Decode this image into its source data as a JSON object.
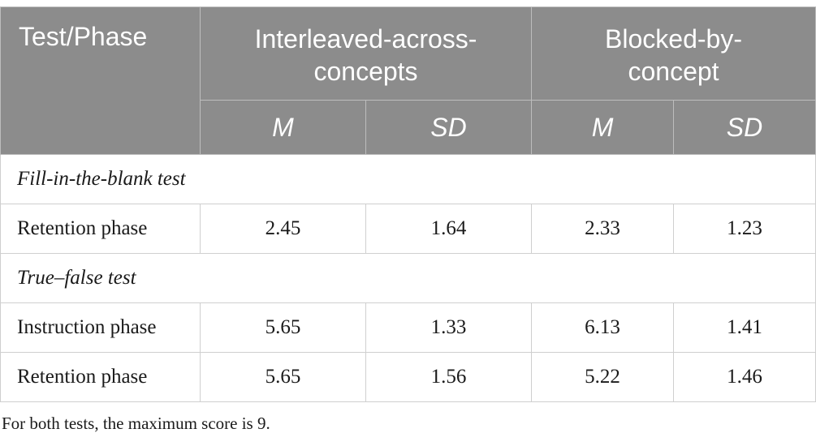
{
  "table": {
    "header": {
      "col0": "Test/Phase",
      "group1": "Interleaved-across-concepts",
      "group1_line1": "Interleaved-across-",
      "group1_line2": "concepts",
      "group2": "Blocked-by-concept",
      "group2_line1": "Blocked-by-",
      "group2_line2": "concept",
      "sub": [
        "M",
        "SD",
        "M",
        "SD"
      ]
    },
    "sections": [
      {
        "title": "Fill-in-the-blank test",
        "rows": [
          {
            "label": "Retention phase",
            "values": [
              "2.45",
              "1.64",
              "2.33",
              "1.23"
            ]
          }
        ]
      },
      {
        "title": "True–false test",
        "rows": [
          {
            "label": "Instruction phase",
            "values": [
              "5.65",
              "1.33",
              "6.13",
              "1.41"
            ]
          },
          {
            "label": "Retention phase",
            "values": [
              "5.65",
              "1.56",
              "5.22",
              "1.46"
            ]
          }
        ]
      }
    ]
  },
  "footnote": "For both tests, the maximum score is 9."
}
